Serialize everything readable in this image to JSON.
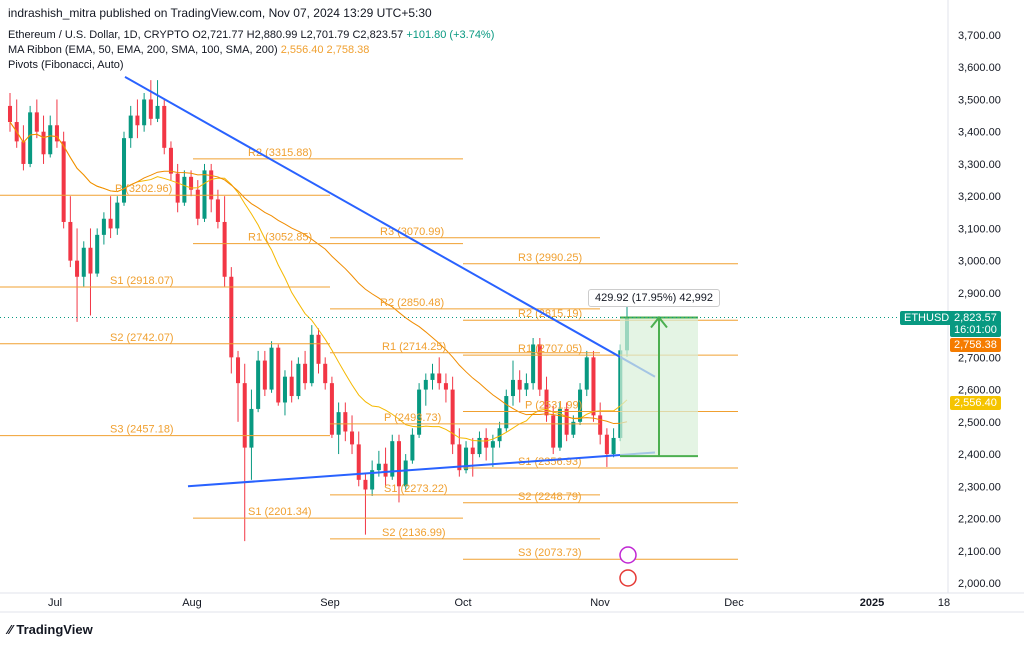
{
  "header": {
    "published_line": "indrashish_mitra published on TradingView.com, Nov 07, 2024 13:29 UTC+5:30",
    "symbol_line": "Ethereum / U.S. Dollar, 1D, CRYPTO",
    "ohlc": {
      "O": "O2,721.77",
      "H": "H2,880.99",
      "L": "L2,701.79",
      "C": "C2,823.57",
      "change": "+101.80 (+3.74%)"
    },
    "ma_ribbon": "MA Ribbon (EMA, 50, EMA, 200, SMA, 100, SMA, 200)",
    "ma_ribbon_vals": "2,556.40  2,758.38",
    "pivots": "Pivots (Fibonacci, Auto)"
  },
  "brand": "TradingView",
  "measure_label": "429.92 (17.95%) 42,992",
  "colors": {
    "up": "#089981",
    "down": "#f23645",
    "pivot": "#f0a030",
    "trend": "#2962ff",
    "measure_fill": "#d9f0d9",
    "measure_line": "#4caf50"
  },
  "tags": [
    {
      "text": "ETHUSD",
      "color": "#089981"
    },
    {
      "text": "2,823.57",
      "color": "#089981"
    },
    {
      "text": "16:01:00",
      "color": "#089981"
    },
    {
      "text": "2,758.38",
      "color": "#f57c00"
    },
    {
      "text": "2,556.40",
      "color": "#f5c400"
    }
  ],
  "chart_data": {
    "type": "candlestick",
    "title": "Ethereum / U.S. Dollar, 1D",
    "ylim": [
      1950,
      3750
    ],
    "y_ticks": [
      "3,700.00",
      "3,600.00",
      "3,500.00",
      "3,400.00",
      "3,300.00",
      "3,200.00",
      "3,100.00",
      "3,000.00",
      "2,900.00",
      "2,800.00",
      "2,700.00",
      "2,600.00",
      "2,500.00",
      "2,400.00",
      "2,300.00",
      "2,200.00",
      "2,100.00",
      "2,000.00"
    ],
    "x_ticks": [
      "Jul",
      "Aug",
      "Sep",
      "Oct",
      "Nov",
      "Dec",
      "2025",
      "18"
    ],
    "last_price": 2823.57,
    "pivot_levels": [
      {
        "label": "S3 (2457.18)",
        "value": 2457.18
      },
      {
        "label": "S2 (2742.07)",
        "value": 2742.07
      },
      {
        "label": "S1 (2918.07)",
        "value": 2918.07
      },
      {
        "label": "P (3202.96)",
        "value": 3202.96
      },
      {
        "label": "R1 (3052.85)",
        "value": 3052.85
      },
      {
        "label": "R2 (3315.88)",
        "value": 3315.88
      },
      {
        "label": "S1 (2201.34)",
        "value": 2201.34
      },
      {
        "label": "S2 (2136.99)",
        "value": 2136.99
      },
      {
        "label": "S1 (2273.22)",
        "value": 2273.22
      },
      {
        "label": "P (2493.73)",
        "value": 2493.73
      },
      {
        "label": "R1 (2714.25)",
        "value": 2714.25
      },
      {
        "label": "R2 (2850.48)",
        "value": 2850.48
      },
      {
        "label": "R3 (3070.99)",
        "value": 3070.99
      },
      {
        "label": "S1 (2356.93)",
        "value": 2356.93
      },
      {
        "label": "S2 (2248.79)",
        "value": 2248.79
      },
      {
        "label": "S3 (2073.73)",
        "value": 2073.73
      },
      {
        "label": "P (2531.99)",
        "value": 2531.99
      },
      {
        "label": "R1 (2707.05)",
        "value": 2707.05
      },
      {
        "label": "R2 (2815.19)",
        "value": 2815.19
      },
      {
        "label": "R3 (2990.25)",
        "value": 2990.25
      }
    ],
    "candles": [
      {
        "o": 3480,
        "h": 3520,
        "l": 3400,
        "c": 3430
      },
      {
        "o": 3430,
        "h": 3500,
        "l": 3350,
        "c": 3370
      },
      {
        "o": 3370,
        "h": 3420,
        "l": 3280,
        "c": 3300
      },
      {
        "o": 3300,
        "h": 3480,
        "l": 3290,
        "c": 3460
      },
      {
        "o": 3460,
        "h": 3500,
        "l": 3380,
        "c": 3400
      },
      {
        "o": 3400,
        "h": 3450,
        "l": 3300,
        "c": 3330
      },
      {
        "o": 3330,
        "h": 3450,
        "l": 3320,
        "c": 3420
      },
      {
        "o": 3420,
        "h": 3500,
        "l": 3350,
        "c": 3370
      },
      {
        "o": 3370,
        "h": 3400,
        "l": 3100,
        "c": 3120
      },
      {
        "o": 3120,
        "h": 3200,
        "l": 2980,
        "c": 3000
      },
      {
        "o": 3000,
        "h": 3100,
        "l": 2810,
        "c": 2950
      },
      {
        "o": 2950,
        "h": 3060,
        "l": 2920,
        "c": 3040
      },
      {
        "o": 3040,
        "h": 3100,
        "l": 2830,
        "c": 2960
      },
      {
        "o": 2960,
        "h": 3100,
        "l": 2950,
        "c": 3080
      },
      {
        "o": 3080,
        "h": 3150,
        "l": 3050,
        "c": 3130
      },
      {
        "o": 3130,
        "h": 3200,
        "l": 3070,
        "c": 3100
      },
      {
        "o": 3100,
        "h": 3200,
        "l": 3080,
        "c": 3180
      },
      {
        "o": 3180,
        "h": 3400,
        "l": 3170,
        "c": 3380
      },
      {
        "o": 3380,
        "h": 3480,
        "l": 3350,
        "c": 3450
      },
      {
        "o": 3450,
        "h": 3500,
        "l": 3380,
        "c": 3420
      },
      {
        "o": 3420,
        "h": 3520,
        "l": 3400,
        "c": 3500
      },
      {
        "o": 3500,
        "h": 3560,
        "l": 3420,
        "c": 3440
      },
      {
        "o": 3440,
        "h": 3560,
        "l": 3430,
        "c": 3480
      },
      {
        "o": 3480,
        "h": 3500,
        "l": 3330,
        "c": 3350
      },
      {
        "o": 3350,
        "h": 3370,
        "l": 3250,
        "c": 3270
      },
      {
        "o": 3270,
        "h": 3300,
        "l": 3150,
        "c": 3180
      },
      {
        "o": 3180,
        "h": 3280,
        "l": 3170,
        "c": 3260
      },
      {
        "o": 3260,
        "h": 3280,
        "l": 3200,
        "c": 3220
      },
      {
        "o": 3220,
        "h": 3250,
        "l": 3110,
        "c": 3130
      },
      {
        "o": 3130,
        "h": 3300,
        "l": 3120,
        "c": 3280
      },
      {
        "o": 3280,
        "h": 3300,
        "l": 3150,
        "c": 3190
      },
      {
        "o": 3190,
        "h": 3220,
        "l": 3100,
        "c": 3120
      },
      {
        "o": 3120,
        "h": 3200,
        "l": 2920,
        "c": 2950
      },
      {
        "o": 2950,
        "h": 2980,
        "l": 2650,
        "c": 2700
      },
      {
        "o": 2700,
        "h": 2720,
        "l": 2500,
        "c": 2620
      },
      {
        "o": 2620,
        "h": 2680,
        "l": 2130,
        "c": 2420
      },
      {
        "o": 2420,
        "h": 2600,
        "l": 2320,
        "c": 2540
      },
      {
        "o": 2540,
        "h": 2720,
        "l": 2530,
        "c": 2690
      },
      {
        "o": 2690,
        "h": 2720,
        "l": 2580,
        "c": 2600
      },
      {
        "o": 2600,
        "h": 2750,
        "l": 2590,
        "c": 2730
      },
      {
        "o": 2730,
        "h": 2740,
        "l": 2550,
        "c": 2560
      },
      {
        "o": 2560,
        "h": 2660,
        "l": 2520,
        "c": 2640
      },
      {
        "o": 2640,
        "h": 2690,
        "l": 2560,
        "c": 2580
      },
      {
        "o": 2580,
        "h": 2700,
        "l": 2570,
        "c": 2680
      },
      {
        "o": 2680,
        "h": 2720,
        "l": 2600,
        "c": 2620
      },
      {
        "o": 2620,
        "h": 2800,
        "l": 2610,
        "c": 2770
      },
      {
        "o": 2770,
        "h": 2790,
        "l": 2650,
        "c": 2680
      },
      {
        "o": 2680,
        "h": 2700,
        "l": 2600,
        "c": 2620
      },
      {
        "o": 2620,
        "h": 2640,
        "l": 2450,
        "c": 2460
      },
      {
        "o": 2460,
        "h": 2560,
        "l": 2400,
        "c": 2530
      },
      {
        "o": 2530,
        "h": 2560,
        "l": 2440,
        "c": 2470
      },
      {
        "o": 2470,
        "h": 2520,
        "l": 2400,
        "c": 2430
      },
      {
        "o": 2430,
        "h": 2470,
        "l": 2300,
        "c": 2320
      },
      {
        "o": 2320,
        "h": 2340,
        "l": 2150,
        "c": 2290
      },
      {
        "o": 2290,
        "h": 2380,
        "l": 2270,
        "c": 2350
      },
      {
        "o": 2350,
        "h": 2410,
        "l": 2330,
        "c": 2370
      },
      {
        "o": 2370,
        "h": 2420,
        "l": 2300,
        "c": 2330
      },
      {
        "o": 2330,
        "h": 2460,
        "l": 2320,
        "c": 2440
      },
      {
        "o": 2440,
        "h": 2460,
        "l": 2250,
        "c": 2300
      },
      {
        "o": 2300,
        "h": 2400,
        "l": 2290,
        "c": 2380
      },
      {
        "o": 2380,
        "h": 2480,
        "l": 2370,
        "c": 2460
      },
      {
        "o": 2460,
        "h": 2620,
        "l": 2450,
        "c": 2600
      },
      {
        "o": 2600,
        "h": 2650,
        "l": 2550,
        "c": 2630
      },
      {
        "o": 2630,
        "h": 2680,
        "l": 2600,
        "c": 2650
      },
      {
        "o": 2650,
        "h": 2700,
        "l": 2600,
        "c": 2620
      },
      {
        "o": 2620,
        "h": 2650,
        "l": 2560,
        "c": 2600
      },
      {
        "o": 2600,
        "h": 2640,
        "l": 2400,
        "c": 2430
      },
      {
        "o": 2430,
        "h": 2480,
        "l": 2330,
        "c": 2350
      },
      {
        "o": 2350,
        "h": 2440,
        "l": 2340,
        "c": 2420
      },
      {
        "o": 2420,
        "h": 2450,
        "l": 2330,
        "c": 2400
      },
      {
        "o": 2400,
        "h": 2470,
        "l": 2390,
        "c": 2450
      },
      {
        "o": 2450,
        "h": 2480,
        "l": 2380,
        "c": 2420
      },
      {
        "o": 2420,
        "h": 2460,
        "l": 2360,
        "c": 2440
      },
      {
        "o": 2440,
        "h": 2500,
        "l": 2420,
        "c": 2480
      },
      {
        "o": 2480,
        "h": 2600,
        "l": 2470,
        "c": 2580
      },
      {
        "o": 2580,
        "h": 2690,
        "l": 2550,
        "c": 2630
      },
      {
        "o": 2630,
        "h": 2660,
        "l": 2560,
        "c": 2600
      },
      {
        "o": 2600,
        "h": 2650,
        "l": 2580,
        "c": 2620
      },
      {
        "o": 2620,
        "h": 2760,
        "l": 2600,
        "c": 2740
      },
      {
        "o": 2740,
        "h": 2760,
        "l": 2580,
        "c": 2600
      },
      {
        "o": 2600,
        "h": 2640,
        "l": 2500,
        "c": 2520
      },
      {
        "o": 2520,
        "h": 2550,
        "l": 2400,
        "c": 2420
      },
      {
        "o": 2420,
        "h": 2560,
        "l": 2410,
        "c": 2540
      },
      {
        "o": 2540,
        "h": 2560,
        "l": 2440,
        "c": 2460
      },
      {
        "o": 2460,
        "h": 2520,
        "l": 2450,
        "c": 2500
      },
      {
        "o": 2500,
        "h": 2620,
        "l": 2490,
        "c": 2600
      },
      {
        "o": 2600,
        "h": 2720,
        "l": 2580,
        "c": 2700
      },
      {
        "o": 2700,
        "h": 2720,
        "l": 2500,
        "c": 2520
      },
      {
        "o": 2520,
        "h": 2560,
        "l": 2430,
        "c": 2460
      },
      {
        "o": 2460,
        "h": 2480,
        "l": 2360,
        "c": 2400
      },
      {
        "o": 2400,
        "h": 2480,
        "l": 2390,
        "c": 2450
      },
      {
        "o": 2450,
        "h": 2740,
        "l": 2440,
        "c": 2721.77
      },
      {
        "o": 2721.77,
        "h": 2880.99,
        "l": 2701.79,
        "c": 2823.57
      }
    ]
  }
}
